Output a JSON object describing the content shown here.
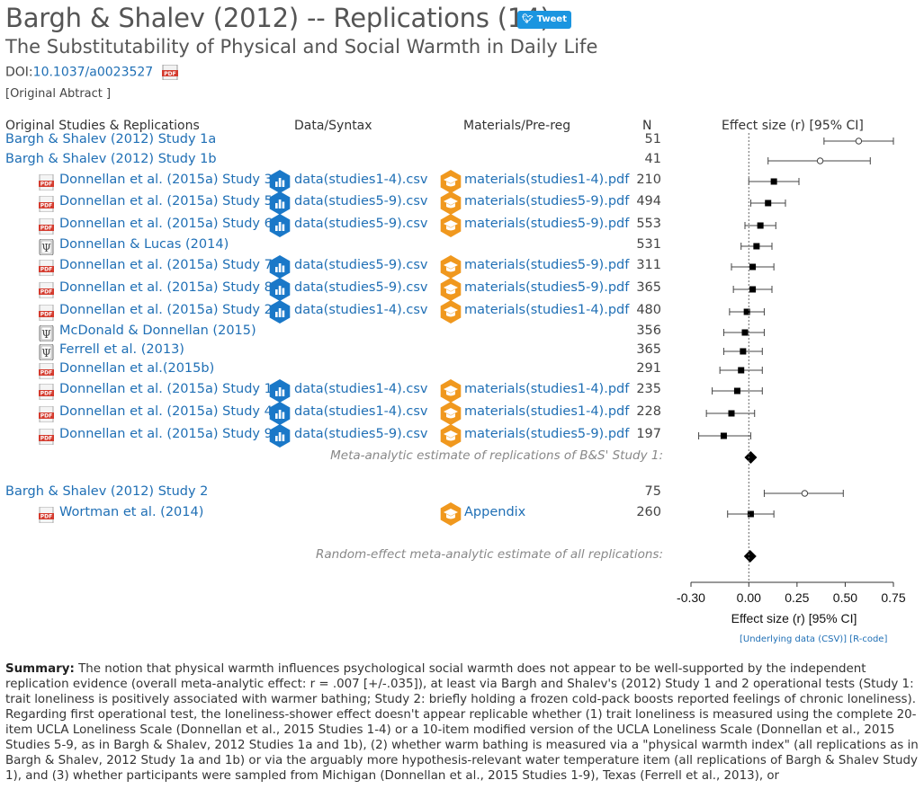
{
  "header": {
    "title": "Bargh & Shalev (2012) -- Replications (14)",
    "tweet_label": "Tweet",
    "subtitle": "The Substitutability of Physical and Social Warmth in Daily Life",
    "doi_prefix": "DOI:",
    "doi": "10.1037/a0023527",
    "abstract_link": "[Original Abtract ]"
  },
  "columns": {
    "studies": "Original Studies & Replications",
    "data": "Data/Syntax",
    "materials": "Materials/Pre-reg",
    "n": "N",
    "effect": "Effect size (r) [95% CI]"
  },
  "rows": [
    {
      "label": "Bargh & Shalev (2012) Study 1a",
      "n": "51",
      "data": "",
      "materials": "",
      "icon": "none",
      "original": true,
      "r": 0.57,
      "lo": 0.39,
      "hi": 0.75
    },
    {
      "label": "Bargh & Shalev (2012) Study 1b",
      "n": "41",
      "data": "",
      "materials": "",
      "icon": "none",
      "original": true,
      "r": 0.37,
      "lo": 0.1,
      "hi": 0.63
    },
    {
      "label": "Donnellan et al. (2015a) Study 3",
      "n": "210",
      "data": "data(studies1-4).csv",
      "materials": "materials(studies1-4).pdf",
      "icon": "pdf",
      "original": false,
      "r": 0.13,
      "lo": 0.0,
      "hi": 0.26
    },
    {
      "label": "Donnellan et al. (2015a) Study 5",
      "n": "494",
      "data": "data(studies5-9).csv",
      "materials": "materials(studies5-9).pdf",
      "icon": "pdf",
      "original": false,
      "r": 0.1,
      "lo": 0.01,
      "hi": 0.19
    },
    {
      "label": "Donnellan et al. (2015a) Study 6",
      "n": "553",
      "data": "data(studies5-9).csv",
      "materials": "materials(studies5-9).pdf",
      "icon": "pdf",
      "original": false,
      "r": 0.06,
      "lo": -0.02,
      "hi": 0.14
    },
    {
      "label": "Donnellan & Lucas (2014)",
      "n": "531",
      "data": "",
      "materials": "",
      "icon": "psi",
      "original": false,
      "r": 0.04,
      "lo": -0.04,
      "hi": 0.12
    },
    {
      "label": "Donnellan et al. (2015a) Study 7",
      "n": "311",
      "data": "data(studies5-9).csv",
      "materials": "materials(studies5-9).pdf",
      "icon": "pdf",
      "original": false,
      "r": 0.02,
      "lo": -0.09,
      "hi": 0.13
    },
    {
      "label": "Donnellan et al. (2015a) Study 8",
      "n": "365",
      "data": "data(studies5-9).csv",
      "materials": "materials(studies5-9).pdf",
      "icon": "pdf",
      "original": false,
      "r": 0.02,
      "lo": -0.08,
      "hi": 0.12
    },
    {
      "label": "Donnellan et al. (2015a) Study 2",
      "n": "480",
      "data": "data(studies1-4).csv",
      "materials": "materials(studies1-4).pdf",
      "icon": "pdf",
      "original": false,
      "r": -0.01,
      "lo": -0.1,
      "hi": 0.08
    },
    {
      "label": "McDonald & Donnellan (2015)",
      "n": "356",
      "data": "",
      "materials": "",
      "icon": "psi",
      "original": false,
      "r": -0.02,
      "lo": -0.13,
      "hi": 0.08
    },
    {
      "label": "Ferrell et al. (2013)",
      "n": "365",
      "data": "",
      "materials": "",
      "icon": "psi",
      "original": false,
      "r": -0.03,
      "lo": -0.13,
      "hi": 0.07
    },
    {
      "label": "Donnellan et al.(2015b)",
      "n": "291",
      "data": "",
      "materials": "",
      "icon": "pdf",
      "original": false,
      "r": -0.04,
      "lo": -0.15,
      "hi": 0.07
    },
    {
      "label": "Donnellan et al. (2015a) Study 1",
      "n": "235",
      "data": "data(studies1-4).csv",
      "materials": "materials(studies1-4).pdf",
      "icon": "pdf",
      "original": false,
      "r": -0.06,
      "lo": -0.19,
      "hi": 0.07
    },
    {
      "label": "Donnellan et al. (2015a) Study 4",
      "n": "228",
      "data": "data(studies1-4).csv",
      "materials": "materials(studies1-4).pdf",
      "icon": "pdf",
      "original": false,
      "r": -0.09,
      "lo": -0.22,
      "hi": 0.03
    },
    {
      "label": "Donnellan et al. (2015a) Study 9",
      "n": "197",
      "data": "data(studies5-9).csv",
      "materials": "materials(studies5-9).pdf",
      "icon": "pdf",
      "original": false,
      "r": -0.13,
      "lo": -0.26,
      "hi": 0.01
    }
  ],
  "meta1": {
    "label": "Meta-analytic estimate of replications of B&S' Study 1:",
    "r": 0.01
  },
  "rows2": [
    {
      "label": "Bargh & Shalev (2012) Study 2",
      "n": "75",
      "data": "",
      "materials": "",
      "icon": "none",
      "original": true,
      "r": 0.29,
      "lo": 0.08,
      "hi": 0.49
    },
    {
      "label": "Wortman et al. (2014)",
      "n": "260",
      "data": "",
      "materials": "Appendix",
      "icon": "pdf",
      "original": false,
      "r": 0.01,
      "lo": -0.11,
      "hi": 0.13
    }
  ],
  "meta2": {
    "label": "Random-effect meta-analytic estimate of all replications:",
    "r": 0.007
  },
  "chart_data": {
    "type": "scatter",
    "xlabel": "Effect size (r) [95% CI]",
    "xlim": [
      -0.3,
      0.75
    ],
    "ticks": [
      "-0.30",
      "0.00",
      "0.25",
      "0.50",
      "0.75"
    ],
    "tick_values": [
      -0.3,
      0.0,
      0.25,
      0.5,
      0.75
    ]
  },
  "links": {
    "underlying": "[Underlying data (CSV)]",
    "rcode": "[R-code]"
  },
  "summary": {
    "label": "Summary:",
    "text": "The notion that physical warmth influences psychological social warmth does not appear to be well-supported by the independent replication evidence (overall meta-analytic effect: r = .007 [+/-.035]), at least via Bargh and Shalev's (2012) Study 1 and 2 operational tests (Study 1: trait loneliness is positively associated with warmer bathing; Study 2: briefly holding a frozen cold-pack boosts reported feelings of chronic loneliness). Regarding first operational test, the loneliness-shower effect doesn't appear replicable whether (1) trait loneliness is measured using the complete 20-item UCLA Loneliness Scale (Donnellan et al., 2015 Studies 1-4) or a 10-item modified version of the UCLA Loneliness Scale (Donnellan et al., 2015 Studies 5-9, as in Bargh & Shalev, 2012 Studies 1a and 1b), (2) whether warm bathing is measured via a \"physical warmth index\" (all replications as in Bargh & Shalev, 2012 Study 1a and 1b) or via the arguably more hypothesis-relevant water temperature item (all replications of Bargh & Shalev Study 1), and (3) whether participants were sampled from Michigan (Donnellan et al., 2015 Studies 1-9), Texas (Ferrell et al., 2013), or"
  },
  "colors": {
    "link": "#1f6fb5",
    "data_icon": "#1a78c8",
    "materials_icon": "#f0981e",
    "tweet": "#1b95e0"
  }
}
